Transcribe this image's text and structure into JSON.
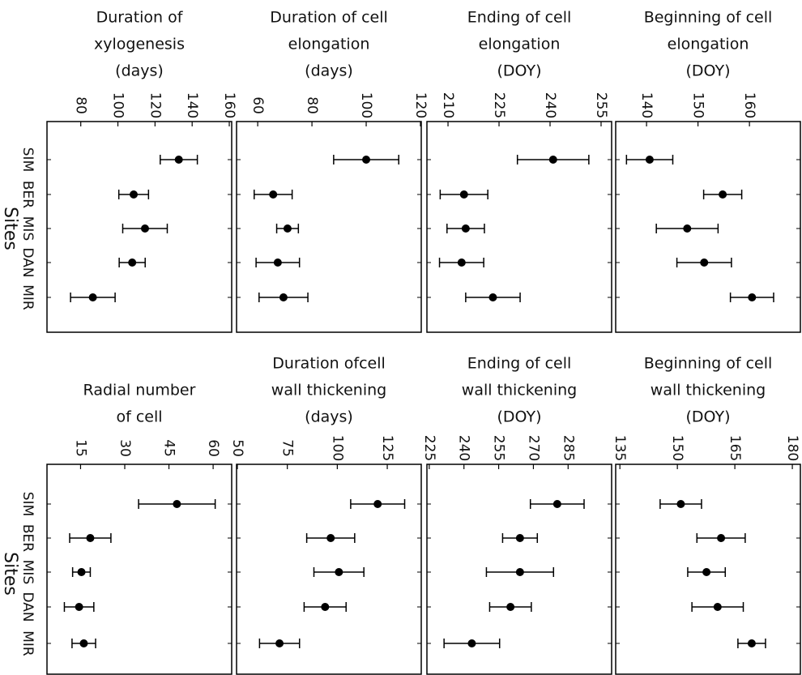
{
  "chart_data": [
    {
      "type": "errorbar",
      "title": [
        "Duration of",
        "xylogenesis",
        "(days)"
      ],
      "ylabel": "Sites",
      "categories": [
        "SIM",
        "BER",
        "MIS",
        "DAN",
        "MIR"
      ],
      "values": [
        132.8,
        108.5,
        114.6,
        107.7,
        86.5
      ],
      "errors": [
        10,
        8,
        12,
        7,
        12
      ],
      "xlim": [
        61.8,
        161.3
      ],
      "xticks": [
        80,
        100,
        120,
        140,
        160
      ],
      "color": "#000000"
    },
    {
      "type": "errorbar",
      "title": [
        "Duration of cell",
        "elongation",
        "(days)"
      ],
      "values": [
        100,
        65.7,
        71,
        67.4,
        69.5
      ],
      "errors": [
        12,
        7,
        4,
        8,
        9
      ],
      "xlim": [
        52.2,
        120.3
      ],
      "xticks": [
        60,
        80,
        100,
        120
      ],
      "color": "#000000"
    },
    {
      "type": "errorbar",
      "title": [
        "Ending of cell",
        "elongation",
        "(DOY)"
      ],
      "values": [
        240.9,
        214.7,
        215.2,
        214,
        223.2
      ],
      "errors": [
        10.5,
        7,
        5.5,
        6.5,
        8
      ],
      "xlim": [
        203.8,
        258.1
      ],
      "xticks": [
        210,
        225,
        240,
        255
      ],
      "color": "#000000"
    },
    {
      "type": "errorbar",
      "title": [
        "Beginning of cell",
        "elongation",
        "(DOY)"
      ],
      "values": [
        140.6,
        154.8,
        147.9,
        151.2,
        160.5
      ],
      "errors": [
        4.5,
        3.7,
        6,
        5.3,
        4.2
      ],
      "xlim": [
        134,
        169.9
      ],
      "xticks": [
        140,
        150,
        160
      ],
      "color": "#000000"
    },
    {
      "type": "errorbar",
      "title": [
        "Radial number",
        "of cell"
      ],
      "ylabel": "Sites",
      "categories": [
        "SIM",
        "BER",
        "MIS",
        "DAN",
        "MIR"
      ],
      "values": [
        47.7,
        18.3,
        15.3,
        14.5,
        16.1
      ],
      "errors": [
        13,
        7,
        3,
        5,
        4
      ],
      "xlim": [
        3.6,
        66.3
      ],
      "xticks": [
        15,
        30,
        45,
        60
      ],
      "color": "#000000"
    },
    {
      "type": "errorbar",
      "title": [
        "Duration ofcell",
        "wall thickening",
        "(days)"
      ],
      "values": [
        120.2,
        96.7,
        100.8,
        93.9,
        71.1
      ],
      "errors": [
        13.5,
        12,
        12.5,
        10.5,
        10
      ],
      "xlim": [
        49.6,
        142
      ],
      "xticks": [
        50,
        75,
        100,
        125
      ],
      "color": "#000000"
    },
    {
      "type": "errorbar",
      "title": [
        "Ending of cell",
        "wall thickening",
        "(DOY)"
      ],
      "values": [
        280.3,
        264.2,
        264.2,
        260.1,
        243.4
      ],
      "errors": [
        11.6,
        7.5,
        14.5,
        9,
        12
      ],
      "xlim": [
        224,
        303.8
      ],
      "xticks": [
        225,
        240,
        255,
        270,
        285
      ],
      "color": "#000000"
    },
    {
      "type": "errorbar",
      "title": [
        "Beginning of cell",
        "wall thickening",
        "(DOY)"
      ],
      "values": [
        150.9,
        161.4,
        157.6,
        160.5,
        169.4
      ],
      "errors": [
        5.4,
        6.3,
        4.9,
        6.7,
        3.6
      ],
      "xlim": [
        133.9,
        182.1
      ],
      "xticks": [
        135,
        150,
        165,
        180
      ],
      "color": "#000000"
    }
  ]
}
